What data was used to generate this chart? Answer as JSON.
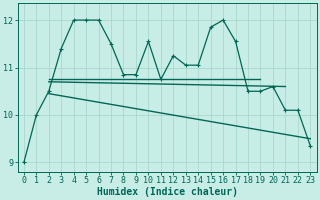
{
  "title": "",
  "xlabel": "Humidex (Indice chaleur)",
  "ylabel": "",
  "bg_color": "#c8ece6",
  "grid_color": "#a8d8cc",
  "line_color": "#006655",
  "xlim": [
    -0.5,
    23.5
  ],
  "ylim": [
    8.8,
    12.35
  ],
  "xticks": [
    0,
    1,
    2,
    3,
    4,
    5,
    6,
    7,
    8,
    9,
    10,
    11,
    12,
    13,
    14,
    15,
    16,
    17,
    18,
    19,
    20,
    21,
    22,
    23
  ],
  "yticks": [
    9,
    10,
    11,
    12
  ],
  "series1_x": [
    0,
    1,
    2,
    3,
    4,
    5,
    6,
    7,
    8,
    9,
    10,
    11,
    12,
    13,
    14,
    15,
    16,
    17,
    18,
    19,
    20,
    21,
    22,
    23
  ],
  "series1_y": [
    9.0,
    10.0,
    10.5,
    11.4,
    12.0,
    12.0,
    12.0,
    11.5,
    10.85,
    10.85,
    11.55,
    10.75,
    11.25,
    11.05,
    11.05,
    11.85,
    12.0,
    11.55,
    10.5,
    10.5,
    10.6,
    10.1,
    10.1,
    9.35
  ],
  "series2_x": [
    2,
    19
  ],
  "series2_y": [
    10.75,
    10.75
  ],
  "series3_x": [
    2,
    21
  ],
  "series3_y": [
    10.7,
    10.6
  ],
  "series4_x": [
    2,
    23
  ],
  "series4_y": [
    10.45,
    9.5
  ],
  "marker": "P",
  "markersize": 2.5,
  "linewidth": 0.9,
  "tick_fontsize": 6,
  "xlabel_fontsize": 7
}
